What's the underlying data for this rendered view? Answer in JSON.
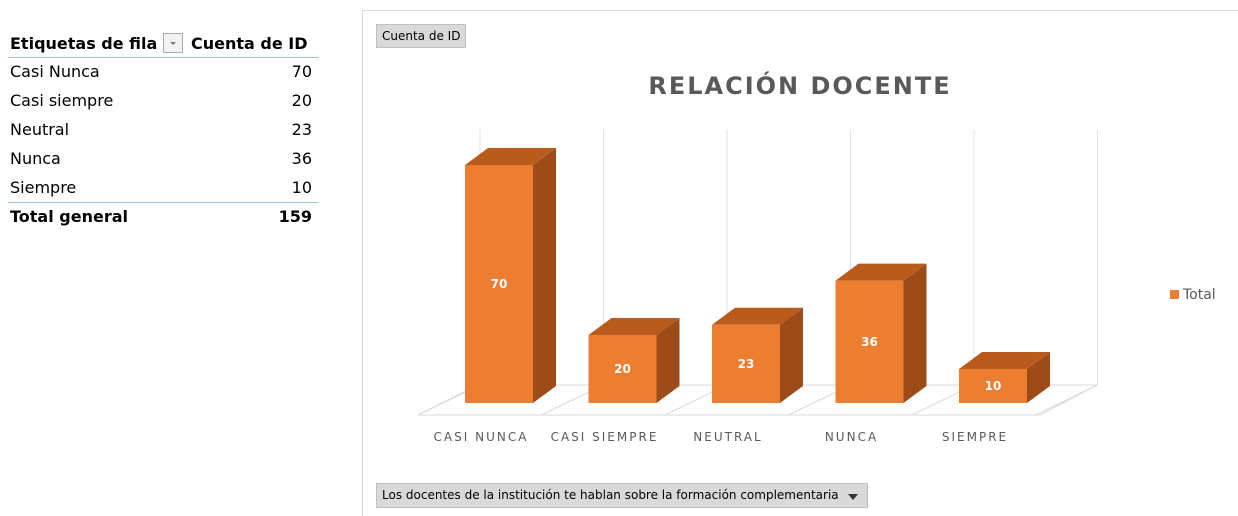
{
  "table": {
    "header": [
      "Etiquetas de fila",
      "Cuenta de ID"
    ],
    "rows": [
      [
        "Casi Nunca",
        "70"
      ],
      [
        "Casi siempre",
        "20"
      ],
      [
        "Neutral",
        "23"
      ],
      [
        "Nunca",
        "36"
      ],
      [
        "Siempre",
        "10"
      ]
    ],
    "total": [
      "Total general",
      "159"
    ]
  },
  "chart_data": {
    "type": "bar",
    "title": "RELACIÓN DOCENTE",
    "value_field_button": "Cuenta de ID",
    "axis_field_button": "Los docentes de la institución te hablan sobre la formación complementaria",
    "categories": [
      "CASI NUNCA",
      "CASI SIEMPRE",
      "NEUTRAL",
      "NUNCA",
      "SIEMPRE"
    ],
    "series": [
      {
        "name": "Total",
        "color": "#ed7d31",
        "values": [
          70,
          20,
          23,
          36,
          10
        ]
      }
    ]
  }
}
